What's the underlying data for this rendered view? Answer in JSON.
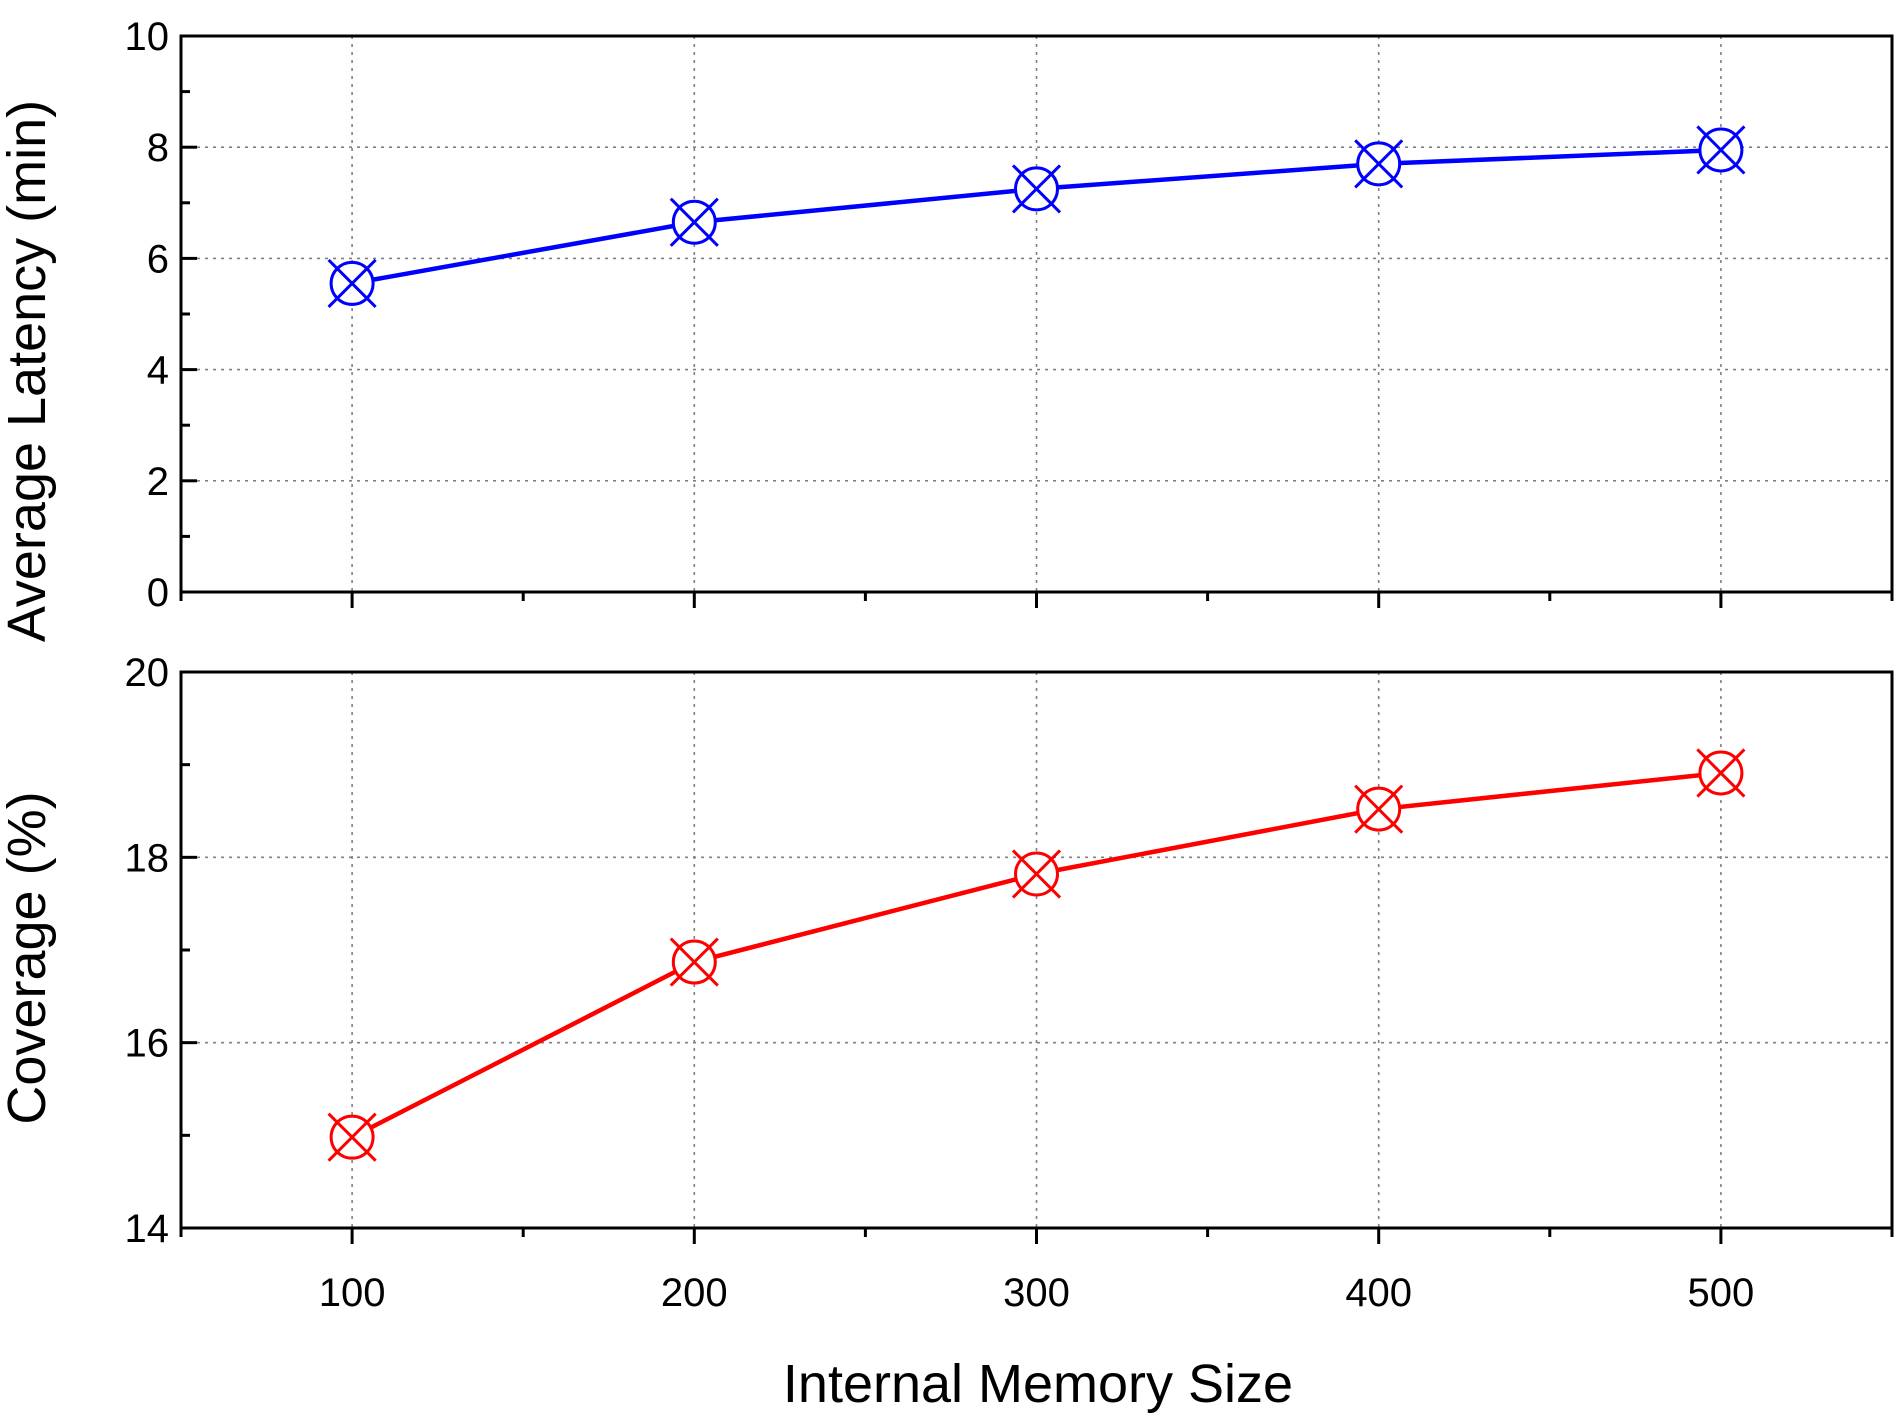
{
  "colors": {
    "latency": "#0000ff",
    "coverage": "#ff0000",
    "background": "#ffffff",
    "frame": "#000000",
    "grid": "#808080"
  },
  "chart_data": [
    {
      "type": "line",
      "panel": "top",
      "ylabel": "Average Latency (min)",
      "xlabel": "",
      "x": [
        100,
        200,
        300,
        400,
        500
      ],
      "series": [
        {
          "values": [
            5.55,
            6.65,
            7.25,
            7.7,
            7.95
          ],
          "color": "#0000ff",
          "marker": "circle-x"
        }
      ],
      "xlim": [
        50,
        550
      ],
      "ylim": [
        0,
        10
      ],
      "yticks": [
        0,
        2,
        4,
        6,
        8,
        10
      ],
      "ytick_labels": [
        "0",
        "2",
        "4",
        "6",
        "8",
        "10"
      ],
      "grid": true,
      "legend": "none"
    },
    {
      "type": "line",
      "panel": "bottom",
      "ylabel": "Coverage (%)",
      "xlabel": "Internal Memory Size",
      "x": [
        100,
        200,
        300,
        400,
        500
      ],
      "series": [
        {
          "values": [
            14.98,
            16.87,
            17.82,
            18.52,
            18.91
          ],
          "color": "#ff0000",
          "marker": "circle-x"
        }
      ],
      "xlim": [
        50,
        550
      ],
      "ylim": [
        14,
        20
      ],
      "yticks": [
        14,
        16,
        18,
        20
      ],
      "ytick_labels": [
        "14",
        "16",
        "18",
        "20"
      ],
      "xticks": [
        100,
        200,
        300,
        400,
        500
      ],
      "xtick_labels": [
        "100",
        "200",
        "300",
        "400",
        "500"
      ],
      "grid": true,
      "legend": "none"
    }
  ]
}
